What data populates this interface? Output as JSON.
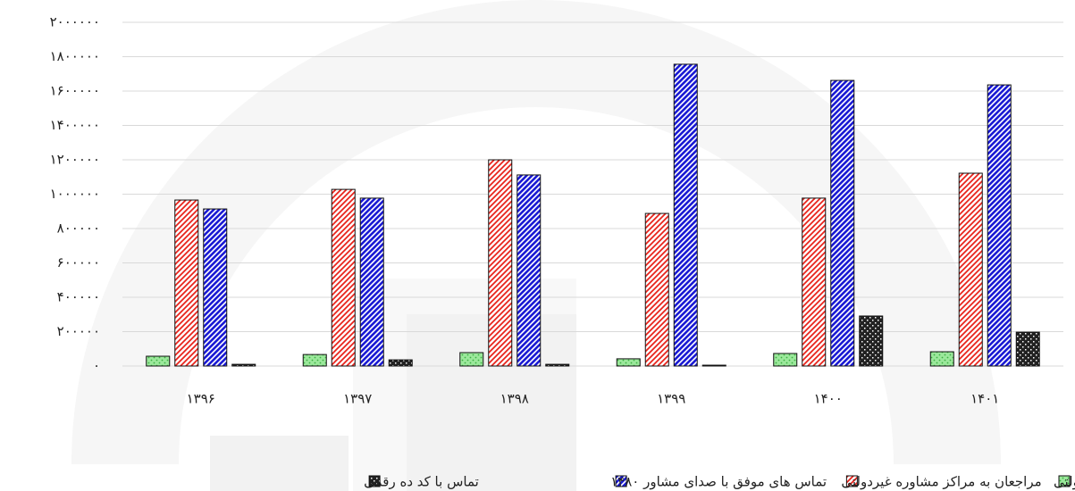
{
  "chart_data": {
    "type": "bar",
    "categories": [
      "۱۳۹۶",
      "۱۳۹۷",
      "۱۳۹۸",
      "۱۳۹۹",
      "۱۴۰۰",
      "۱۴۰۱"
    ],
    "series": [
      {
        "name": "مراجعان به مراکز مشاوره دولتی",
        "color": "#3cb043",
        "values": [
          57000,
          67000,
          78000,
          42000,
          73000,
          83000
        ]
      },
      {
        "name": "مراجعان به مراکز مشاوره غیردولتی",
        "color": "#e8241c",
        "values": [
          966000,
          1028000,
          1200000,
          888000,
          977000,
          1122000
        ]
      },
      {
        "name": "تماس های موفق با صدای مشاور ۱۴۸۰",
        "color": "#1a1ad4",
        "values": [
          914000,
          977000,
          1112000,
          1756000,
          1662000,
          1636000
        ]
      },
      {
        "name": "تماس با کد ده رقمی",
        "color": "#222222",
        "values": [
          10000,
          36000,
          10000,
          5000,
          291000,
          197000
        ]
      }
    ],
    "ylim": [
      0,
      2000000
    ],
    "yticks": [
      {
        "value": 0,
        "label": "۰"
      },
      {
        "value": 200000,
        "label": "۲۰۰۰۰۰"
      },
      {
        "value": 400000,
        "label": "۴۰۰۰۰۰"
      },
      {
        "value": 600000,
        "label": "۶۰۰۰۰۰"
      },
      {
        "value": 800000,
        "label": "۸۰۰۰۰۰"
      },
      {
        "value": 1000000,
        "label": "۱۰۰۰۰۰۰"
      },
      {
        "value": 1200000,
        "label": "۱۲۰۰۰۰۰"
      },
      {
        "value": 1400000,
        "label": "۱۴۰۰۰۰۰"
      },
      {
        "value": 1600000,
        "label": "۱۶۰۰۰۰۰"
      },
      {
        "value": 1800000,
        "label": "۱۸۰۰۰۰۰"
      },
      {
        "value": 2000000,
        "label": "۲۰۰۰۰۰۰"
      }
    ],
    "grid": true,
    "legend": "bottom"
  }
}
